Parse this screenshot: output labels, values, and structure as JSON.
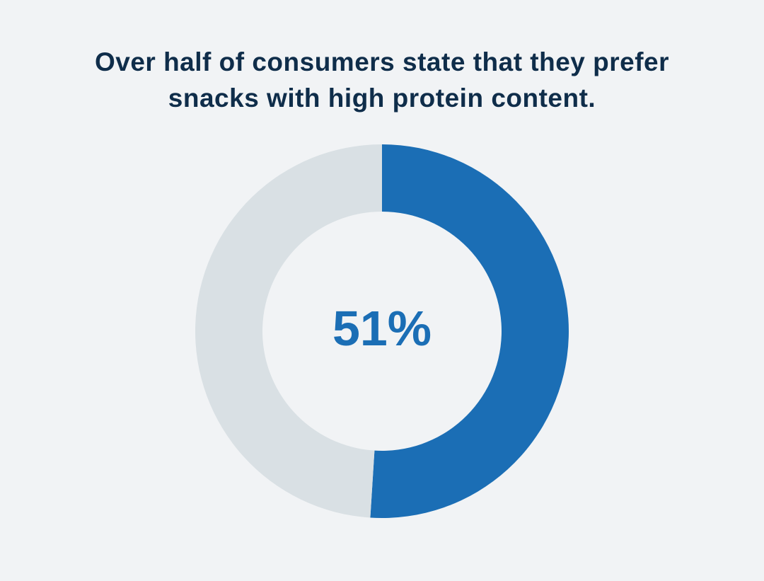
{
  "title_lines": [
    "Over half of consumers state that they prefer",
    "snacks with high protein content."
  ],
  "colors": {
    "background": "#f1f3f5",
    "title": "#0f2d4a",
    "highlight": "#1b6eb5",
    "remainder": "#d9e0e4"
  },
  "chart_data": {
    "type": "pie",
    "style": "donut",
    "title": "Over half of consumers state that they prefer snacks with high protein content.",
    "slices": [
      {
        "label": "",
        "value": 51,
        "color": "#1b6eb5"
      },
      {
        "label": "",
        "value": 49,
        "color": "#d9e0e4"
      }
    ],
    "center_label": "51%",
    "legend": "none"
  }
}
